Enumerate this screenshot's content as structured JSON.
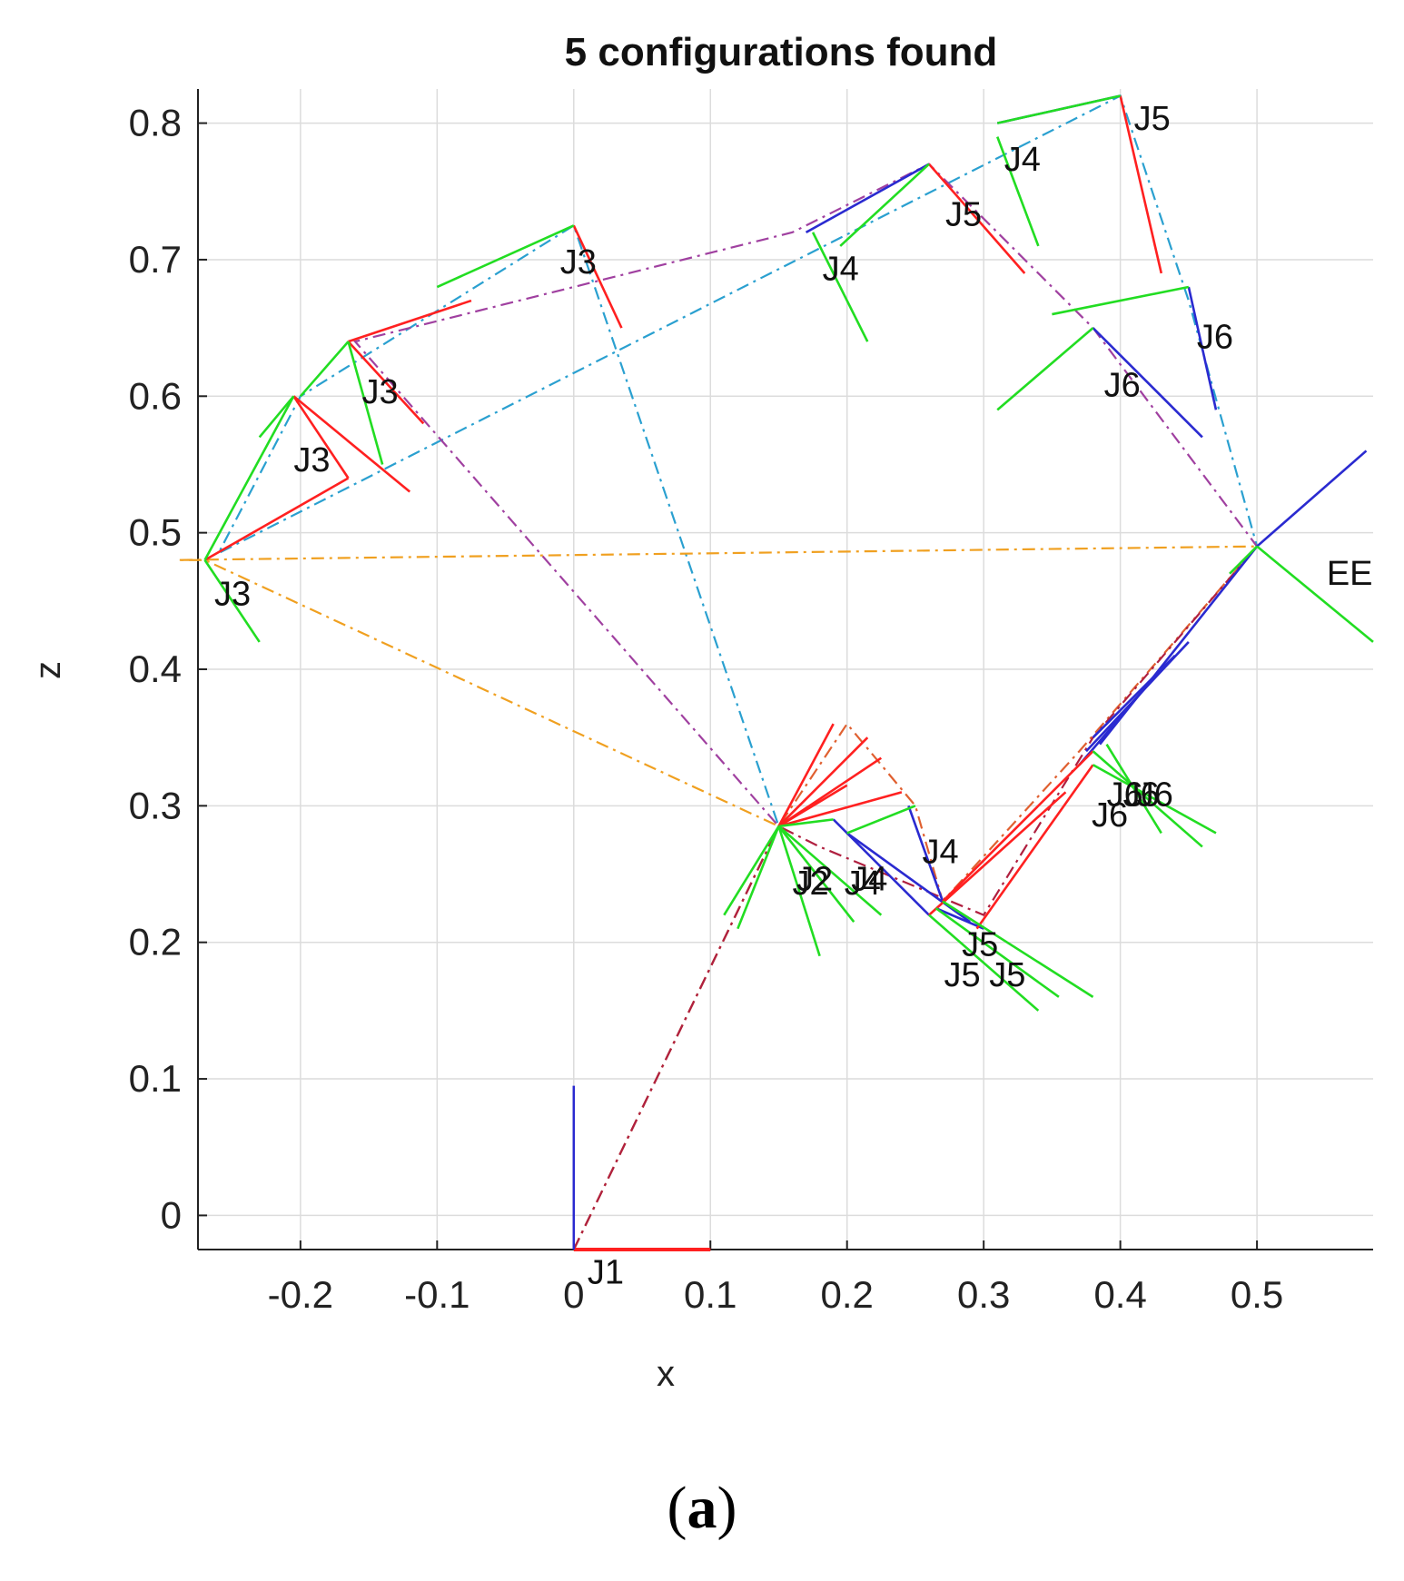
{
  "chart_data": {
    "type": "line",
    "title": "5 configurations found",
    "xlabel": "x",
    "ylabel": "z",
    "xlim": [
      -0.275,
      0.585
    ],
    "ylim": [
      -0.025,
      0.825
    ],
    "xticks": [
      -0.2,
      -0.1,
      0,
      0.1,
      0.2,
      0.3,
      0.4,
      0.5
    ],
    "yticks": [
      0,
      0.1,
      0.2,
      0.3,
      0.4,
      0.5,
      0.6,
      0.7,
      0.8
    ],
    "xtick_labels": [
      "-0.2",
      "-0.1",
      "0",
      "0.1",
      "0.2",
      "0.3",
      "0.4",
      "0.5"
    ],
    "ytick_labels": [
      "0",
      "0.1",
      "0.2",
      "0.3",
      "0.4",
      "0.5",
      "0.6",
      "0.7",
      "0.8"
    ],
    "grid": true,
    "colors": {
      "link_red": "#ff2020",
      "link_blue": "#2a2ad0",
      "frame_green": "#22dd22",
      "chain_cyan": "#2aa0d0",
      "chain_purple": "#a040a0",
      "chain_orange": "#f0a020",
      "chain_brown": "#e06030",
      "chain_olive": "#80b020",
      "chain_maroon": "#b02040"
    },
    "series": [
      {
        "color": "#2aa0d0",
        "x": [
          0,
          0.15,
          0,
          -0.2,
          -0.26,
          0.4,
          0.45,
          0.5
        ],
        "y": [
          -0.025,
          0.285,
          0.725,
          0.6,
          0.485,
          0.82,
          0.67,
          0.49
        ]
      },
      {
        "color": "#a040a0",
        "x": [
          0,
          0.15,
          -0.16,
          0.16,
          0.26,
          0.38,
          0.5
        ],
        "y": [
          -0.025,
          0.285,
          0.64,
          0.72,
          0.77,
          0.65,
          0.49
        ]
      },
      {
        "color": "#f0a020",
        "x": [
          0,
          0.15,
          -0.27,
          -0.29,
          0.5
        ],
        "y": [
          -0.025,
          0.285,
          0.48,
          0.48,
          0.49
        ]
      },
      {
        "color": "#e06030",
        "x": [
          0,
          0.15,
          0.2,
          0.25,
          0.27,
          0.37,
          0.5
        ],
        "y": [
          -0.025,
          0.285,
          0.36,
          0.3,
          0.23,
          0.34,
          0.49
        ]
      },
      {
        "color": "#b02040",
        "x": [
          0,
          0.15,
          0.18,
          0.3,
          0.38,
          0.5
        ],
        "y": [
          -0.025,
          0.285,
          0.27,
          0.22,
          0.35,
          0.49
        ]
      }
    ],
    "annotations": [
      {
        "text": "J1",
        "x": 0.01,
        "y": -0.05
      },
      {
        "text": "J2",
        "x": 0.16,
        "y": 0.235
      },
      {
        "text": "J2",
        "x": 0.163,
        "y": 0.238
      },
      {
        "text": "J3",
        "x": -0.01,
        "y": 0.69
      },
      {
        "text": "J3",
        "x": -0.155,
        "y": 0.595
      },
      {
        "text": "J3",
        "x": -0.205,
        "y": 0.545
      },
      {
        "text": "J3",
        "x": -0.263,
        "y": 0.447
      },
      {
        "text": "J4",
        "x": 0.315,
        "y": 0.765
      },
      {
        "text": "J4",
        "x": 0.182,
        "y": 0.685
      },
      {
        "text": "J4",
        "x": 0.198,
        "y": 0.235
      },
      {
        "text": "J4",
        "x": 0.203,
        "y": 0.238
      },
      {
        "text": "J4",
        "x": 0.255,
        "y": 0.258
      },
      {
        "text": "J5",
        "x": 0.41,
        "y": 0.795
      },
      {
        "text": "J5",
        "x": 0.272,
        "y": 0.725
      },
      {
        "text": "J5",
        "x": 0.284,
        "y": 0.19
      },
      {
        "text": "J5",
        "x": 0.271,
        "y": 0.168
      },
      {
        "text": "J5",
        "x": 0.304,
        "y": 0.168
      },
      {
        "text": "J6",
        "x": 0.456,
        "y": 0.635
      },
      {
        "text": "J6",
        "x": 0.388,
        "y": 0.6
      },
      {
        "text": "J6",
        "x": 0.39,
        "y": 0.3
      },
      {
        "text": "J6",
        "x": 0.402,
        "y": 0.3
      },
      {
        "text": "J6",
        "x": 0.412,
        "y": 0.3
      },
      {
        "text": "J6",
        "x": 0.379,
        "y": 0.285
      },
      {
        "text": "EE",
        "x": 0.551,
        "y": 0.462
      }
    ]
  },
  "caption": {
    "open": "(",
    "letter": "a",
    "close": ")"
  }
}
